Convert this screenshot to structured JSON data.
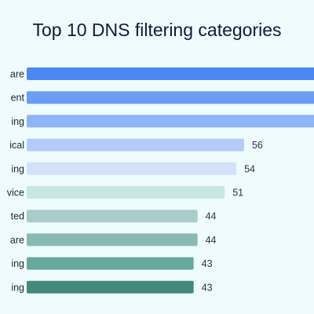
{
  "chart_data": {
    "type": "bar",
    "orientation": "horizontal",
    "title": "Top 10 DNS filtering categories",
    "categories": [
      "are",
      "ent",
      "ing",
      "ical",
      "ing",
      "vice",
      "ted",
      "are",
      "ing",
      "ing"
    ],
    "values": [
      null,
      null,
      null,
      56,
      54,
      51,
      44,
      44,
      43,
      43
    ],
    "bar_colors": [
      "#4d86f5",
      "#6c9cf6",
      "#8eb4f7",
      "#b5ccfa",
      "#d2e2fb",
      "#c7e6e5",
      "#a7cdca",
      "#87bab4",
      "#68a89e",
      "#43897e"
    ],
    "xlim": [
      0,
      74
    ],
    "grid": false,
    "legend": "none"
  }
}
